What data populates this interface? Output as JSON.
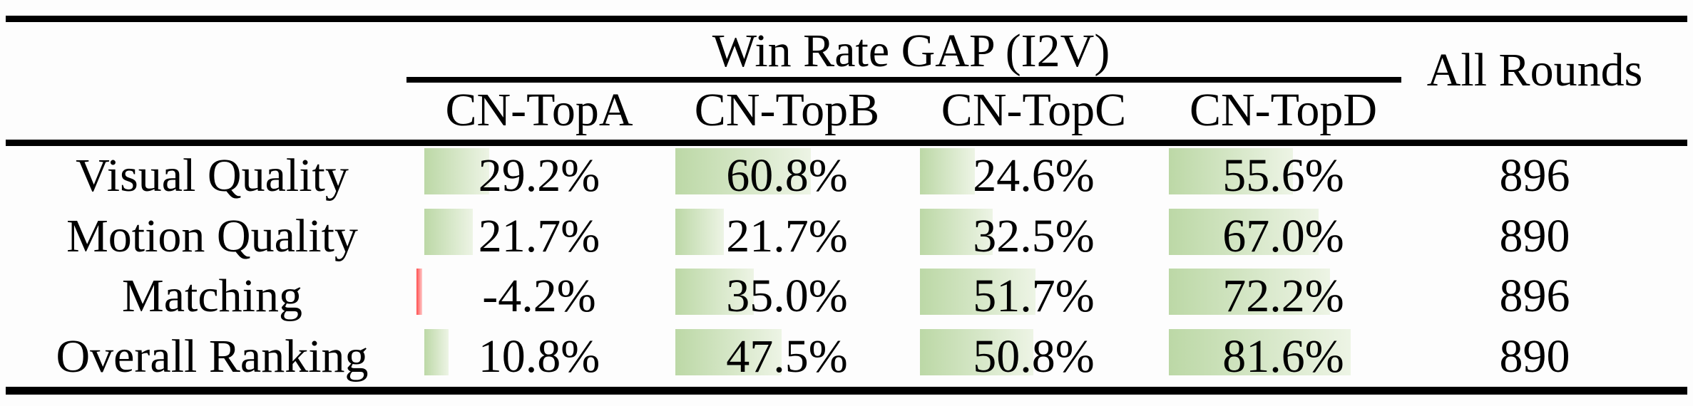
{
  "header": {
    "group_title": "Win Rate GAP (I2V)",
    "columns": [
      "CN-TopA",
      "CN-TopB",
      "CN-TopC",
      "CN-TopD"
    ],
    "all_rounds": "All Rounds"
  },
  "rows": [
    {
      "label": "Visual Quality",
      "cells": [
        "29.2%",
        "60.8%",
        "24.6%",
        "55.6%"
      ],
      "all_rounds": "896"
    },
    {
      "label": "Motion Quality",
      "cells": [
        "21.7%",
        "21.7%",
        "32.5%",
        "67.0%"
      ],
      "all_rounds": "890"
    },
    {
      "label": "Matching",
      "cells": [
        "-4.2%",
        "35.0%",
        "51.7%",
        "72.2%"
      ],
      "all_rounds": "896"
    },
    {
      "label": "Overall Ranking",
      "cells": [
        "10.8%",
        "47.5%",
        "50.8%",
        "81.6%"
      ],
      "all_rounds": "890"
    }
  ],
  "chart_data": {
    "type": "table",
    "title": "Win Rate GAP (I2V)",
    "columns": [
      "CN-TopA",
      "CN-TopB",
      "CN-TopC",
      "CN-TopD",
      "All Rounds"
    ],
    "row_labels": [
      "Visual Quality",
      "Motion Quality",
      "Matching",
      "Overall Ranking"
    ],
    "series": [
      {
        "name": "CN-TopA",
        "values": [
          29.2,
          21.7,
          -4.2,
          10.8
        ]
      },
      {
        "name": "CN-TopB",
        "values": [
          60.8,
          21.7,
          35.0,
          47.5
        ]
      },
      {
        "name": "CN-TopC",
        "values": [
          24.6,
          32.5,
          51.7,
          50.8
        ]
      },
      {
        "name": "CN-TopD",
        "values": [
          55.6,
          67.0,
          72.2,
          81.6
        ]
      }
    ],
    "all_rounds": [
      896,
      890,
      896,
      890
    ],
    "unit": "%",
    "bar_style": "in-cell gradient data bars; green for positive values, red sliver for negative"
  },
  "colors": {
    "bar_positive_start": "#bcd8a6",
    "bar_positive_end": "#edf4e5",
    "bar_negative_start": "#ff4f4f",
    "bar_negative_end": "#ffc9c9",
    "rule": "#000000",
    "text": "#000000",
    "background": "#fdfdfd"
  }
}
